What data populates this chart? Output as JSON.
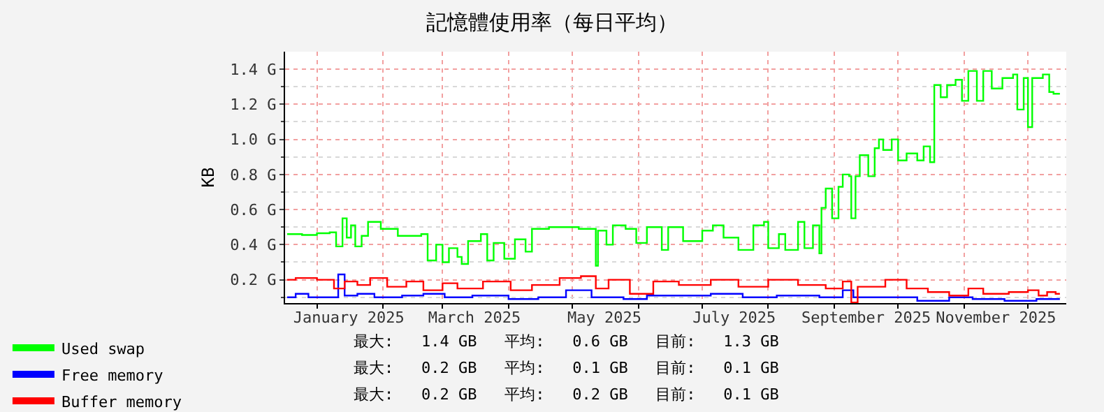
{
  "chart_data": {
    "type": "step",
    "title": "記憶體使用率（每日平均）",
    "ylabel": "KB",
    "xlim": [
      "2024-12-17",
      "2025-12-19"
    ],
    "xticks": [
      {
        "value": "2025-01-16",
        "label": "January 2025"
      },
      {
        "value": "2025-03-16",
        "label": "March 2025"
      },
      {
        "value": "2025-05-16",
        "label": "May 2025"
      },
      {
        "value": "2025-07-16",
        "label": "July 2025"
      },
      {
        "value": "2025-09-16",
        "label": "September 2025"
      },
      {
        "value": "2025-11-16",
        "label": "November 2025"
      },
      {
        "value": "2025-01-01",
        "label": null
      },
      {
        "value": "2025-02-01",
        "label": null
      },
      {
        "value": "2025-03-01",
        "label": null
      },
      {
        "value": "2025-04-01",
        "label": null
      },
      {
        "value": "2025-05-01",
        "label": null
      },
      {
        "value": "2025-06-01",
        "label": null
      },
      {
        "value": "2025-07-01",
        "label": null
      },
      {
        "value": "2025-08-01",
        "label": null
      },
      {
        "value": "2025-09-01",
        "label": null
      },
      {
        "value": "2025-10-01",
        "label": null
      },
      {
        "value": "2025-11-01",
        "label": null
      },
      {
        "value": "2025-12-01",
        "label": null
      }
    ],
    "ylim": [
      0.067,
      1.5
    ],
    "yticks": [
      {
        "value": 0.2,
        "label": "0.2 G"
      },
      {
        "value": 0.4,
        "label": "0.4 G"
      },
      {
        "value": 0.6,
        "label": "0.6 G"
      },
      {
        "value": 0.8,
        "label": "0.8 G"
      },
      {
        "value": 1.0,
        "label": "1.0 G"
      },
      {
        "value": 1.2,
        "label": "1.2 G"
      },
      {
        "value": 1.4,
        "label": "1.4 G"
      },
      {
        "value": 0.1,
        "label": null
      },
      {
        "value": 0.3,
        "label": null
      },
      {
        "value": 0.5,
        "label": null
      },
      {
        "value": 0.7,
        "label": null
      },
      {
        "value": 0.9,
        "label": null
      },
      {
        "value": 1.1,
        "label": null
      },
      {
        "value": 1.3,
        "label": null
      }
    ],
    "grid": true,
    "legend": "bottom left",
    "series": [
      {
        "name": "Used swap",
        "color": "#00ff00",
        "x": [
          "2024-12-18",
          "2024-12-25",
          "2025-01-01",
          "2025-01-07",
          "2025-01-10",
          "2025-01-13",
          "2025-01-15",
          "2025-01-17",
          "2025-01-19",
          "2025-01-22",
          "2025-01-25",
          "2025-01-31",
          "2025-02-08",
          "2025-02-19",
          "2025-02-22",
          "2025-02-26",
          "2025-03-01",
          "2025-03-04",
          "2025-03-08",
          "2025-03-10",
          "2025-03-13",
          "2025-03-19",
          "2025-03-22",
          "2025-03-25",
          "2025-03-30",
          "2025-04-04",
          "2025-04-09",
          "2025-04-12",
          "2025-04-20",
          "2025-05-04",
          "2025-05-12",
          "2025-05-13",
          "2025-05-17",
          "2025-05-20",
          "2025-05-26",
          "2025-05-31",
          "2025-06-05",
          "2025-06-12",
          "2025-06-15",
          "2025-06-22",
          "2025-07-01",
          "2025-07-06",
          "2025-07-11",
          "2025-07-18",
          "2025-07-25",
          "2025-07-30",
          "2025-08-01",
          "2025-08-06",
          "2025-08-09",
          "2025-08-15",
          "2025-08-18",
          "2025-08-22",
          "2025-08-25",
          "2025-08-26",
          "2025-08-28",
          "2025-08-31",
          "2025-09-03",
          "2025-09-05",
          "2025-09-08",
          "2025-09-09",
          "2025-09-11",
          "2025-09-13",
          "2025-09-17",
          "2025-09-20",
          "2025-09-22",
          "2025-09-24",
          "2025-09-28",
          "2025-10-01",
          "2025-10-05",
          "2025-10-10",
          "2025-10-13",
          "2025-10-16",
          "2025-10-18",
          "2025-10-21",
          "2025-10-24",
          "2025-10-28",
          "2025-10-31",
          "2025-11-03",
          "2025-11-07",
          "2025-11-10",
          "2025-11-14",
          "2025-11-19",
          "2025-11-24",
          "2025-11-26",
          "2025-11-29",
          "2025-12-01",
          "2025-12-03",
          "2025-12-08",
          "2025-12-11",
          "2025-12-13",
          "2025-12-16"
        ],
        "values": [
          0.46,
          0.455,
          0.465,
          0.47,
          0.39,
          0.55,
          0.44,
          0.51,
          0.39,
          0.45,
          0.53,
          0.49,
          0.45,
          0.46,
          0.31,
          0.4,
          0.3,
          0.38,
          0.33,
          0.29,
          0.42,
          0.46,
          0.31,
          0.41,
          0.32,
          0.43,
          0.36,
          0.49,
          0.5,
          0.49,
          0.28,
          0.48,
          0.4,
          0.51,
          0.49,
          0.41,
          0.5,
          0.37,
          0.5,
          0.42,
          0.48,
          0.51,
          0.44,
          0.37,
          0.51,
          0.53,
          0.38,
          0.46,
          0.37,
          0.53,
          0.38,
          0.51,
          0.35,
          0.61,
          0.72,
          0.55,
          0.73,
          0.8,
          0.79,
          0.55,
          0.79,
          0.91,
          0.79,
          0.95,
          1.0,
          0.94,
          1.0,
          0.88,
          0.92,
          0.88,
          0.96,
          0.87,
          1.31,
          1.24,
          1.31,
          1.34,
          1.22,
          1.39,
          1.22,
          1.39,
          1.29,
          1.35,
          1.37,
          1.17,
          1.35,
          1.07,
          1.35,
          1.37,
          1.27,
          1.26,
          1.26
        ]
      },
      {
        "name": "Free memory",
        "color": "#0000ff",
        "x": [
          "2024-12-18",
          "2024-12-22",
          "2024-12-28",
          "2025-01-08",
          "2025-01-11",
          "2025-01-14",
          "2025-01-20",
          "2025-01-28",
          "2025-02-10",
          "2025-02-20",
          "2025-03-02",
          "2025-03-15",
          "2025-04-01",
          "2025-04-15",
          "2025-04-28",
          "2025-05-10",
          "2025-05-25",
          "2025-06-05",
          "2025-06-20",
          "2025-07-05",
          "2025-07-20",
          "2025-08-05",
          "2025-08-25",
          "2025-09-05",
          "2025-09-10",
          "2025-09-25",
          "2025-10-10",
          "2025-10-25",
          "2025-11-05",
          "2025-11-20",
          "2025-12-05",
          "2025-12-13",
          "2025-12-16"
        ],
        "values": [
          0.1,
          0.12,
          0.1,
          0.1,
          0.23,
          0.11,
          0.12,
          0.1,
          0.11,
          0.12,
          0.1,
          0.11,
          0.09,
          0.1,
          0.14,
          0.1,
          0.09,
          0.11,
          0.11,
          0.12,
          0.1,
          0.11,
          0.1,
          0.14,
          0.1,
          0.1,
          0.08,
          0.1,
          0.09,
          0.08,
          0.09,
          0.09,
          0.09
        ]
      },
      {
        "name": "Buffer memory",
        "color": "#ff0000",
        "x": [
          "2024-12-18",
          "2024-12-22",
          "2025-01-01",
          "2025-01-09",
          "2025-01-14",
          "2025-01-20",
          "2025-01-26",
          "2025-02-03",
          "2025-02-12",
          "2025-02-20",
          "2025-03-01",
          "2025-03-08",
          "2025-03-20",
          "2025-04-02",
          "2025-04-12",
          "2025-04-25",
          "2025-05-05",
          "2025-05-12",
          "2025-05-18",
          "2025-05-28",
          "2025-06-08",
          "2025-06-20",
          "2025-07-05",
          "2025-07-18",
          "2025-08-01",
          "2025-08-15",
          "2025-08-28",
          "2025-09-05",
          "2025-09-09",
          "2025-09-12",
          "2025-09-25",
          "2025-10-05",
          "2025-10-15",
          "2025-10-25",
          "2025-11-03",
          "2025-11-10",
          "2025-11-22",
          "2025-12-01",
          "2025-12-06",
          "2025-12-10",
          "2025-12-14",
          "2025-12-16"
        ],
        "values": [
          0.2,
          0.21,
          0.2,
          0.15,
          0.19,
          0.17,
          0.21,
          0.16,
          0.19,
          0.14,
          0.18,
          0.15,
          0.19,
          0.14,
          0.17,
          0.21,
          0.22,
          0.15,
          0.2,
          0.12,
          0.19,
          0.17,
          0.2,
          0.16,
          0.2,
          0.17,
          0.15,
          0.19,
          0.07,
          0.16,
          0.2,
          0.15,
          0.13,
          0.11,
          0.15,
          0.12,
          0.13,
          0.14,
          0.11,
          0.13,
          0.12,
          0.12
        ]
      }
    ],
    "annotations": [
      "最大:   1.4 GB   平均:   0.6 GB   目前:   1.3 GB",
      "最大:   0.2 GB   平均:   0.1 GB   目前:   0.1 GB",
      "最大:   0.2 GB   平均:   0.2 GB   目前:   0.1 GB"
    ]
  }
}
